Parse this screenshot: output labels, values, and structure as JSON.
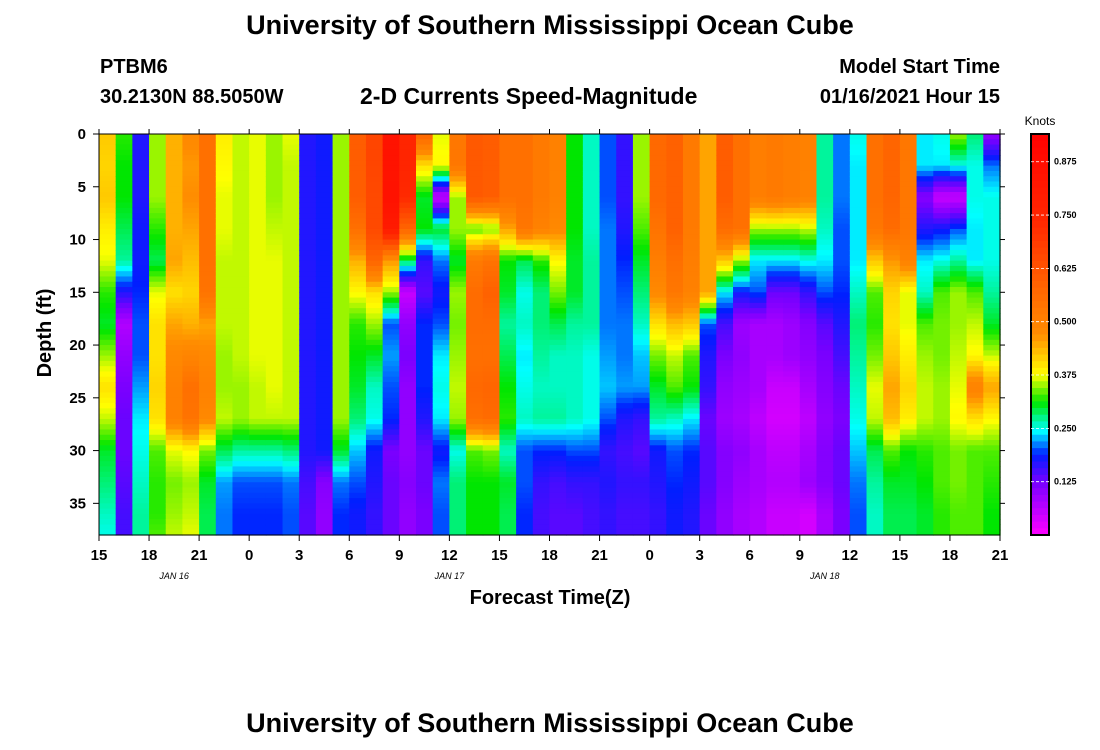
{
  "header": {
    "title": "University of Southern Mississippi Ocean Cube",
    "station_id": "PTBM6",
    "station_coords": "30.2130N 88.5050W",
    "plot_title": "2-D Currents Speed-Magnitude",
    "start_label": "Model Start Time",
    "start_value": "01/16/2021 Hour 15"
  },
  "footer": {
    "title": "University of Southern Mississippi Ocean Cube"
  },
  "chart_data": {
    "type": "heatmap",
    "title": "2-D Currents Speed-Magnitude",
    "xlabel": "Forecast Time(Z)",
    "ylabel": "Depth (ft)",
    "x_hours": [
      0,
      3,
      6,
      9,
      12,
      15,
      18,
      21,
      24,
      27,
      30,
      33,
      36,
      39,
      42,
      45,
      48,
      51,
      54
    ],
    "xtick_labels": [
      "15",
      "18",
      "21",
      "0",
      "3",
      "6",
      "9",
      "12",
      "15",
      "18",
      "21",
      "0",
      "3",
      "6",
      "9",
      "12",
      "15",
      "18",
      "21"
    ],
    "date_labels": [
      {
        "label": "JAN 16",
        "hour": 4.5
      },
      {
        "label": "JAN 17",
        "hour": 21
      },
      {
        "label": "JAN 18",
        "hour": 43.5
      }
    ],
    "ytick_values": [
      0,
      5,
      10,
      15,
      20,
      25,
      30,
      35
    ],
    "xlim": [
      0,
      54
    ],
    "ylim": [
      0,
      38
    ],
    "colorbar": {
      "label": "Knots",
      "range": [
        0,
        0.94
      ],
      "tick_values": [
        0.875,
        0.75,
        0.625,
        0.5,
        0.375,
        0.25,
        0.125
      ],
      "tick_labels": [
        "0.875",
        "0.750",
        "0.625",
        "0.500",
        "0.375",
        "0.250",
        "0.125"
      ]
    },
    "hour_step": 1,
    "depth_values": [
      0,
      3,
      6,
      9,
      12,
      15,
      18,
      21,
      24,
      27,
      30,
      33,
      36,
      38
    ],
    "speed_grid_knots": [
      [
        0.42,
        0.32,
        0.17,
        0.35,
        0.44,
        0.48,
        0.55,
        0.39,
        0.36,
        0.37,
        0.35,
        0.37,
        0.17,
        0.18,
        0.35,
        0.6,
        0.66,
        0.84,
        0.75,
        0.58,
        0.37,
        0.53,
        0.61,
        0.6,
        0.55,
        0.55,
        0.52,
        0.5,
        0.31,
        0.26,
        0.2,
        0.16,
        0.35,
        0.57,
        0.59,
        0.52,
        0.45,
        0.6,
        0.55,
        0.51,
        0.52,
        0.51,
        0.5,
        0.27,
        0.21,
        0.25,
        0.55,
        0.58,
        0.53,
        0.24,
        0.25,
        0.35,
        0.28,
        0.1,
        0.12
      ],
      [
        0.41,
        0.31,
        0.17,
        0.35,
        0.44,
        0.46,
        0.55,
        0.38,
        0.36,
        0.37,
        0.35,
        0.36,
        0.17,
        0.18,
        0.35,
        0.6,
        0.66,
        0.84,
        0.75,
        0.4,
        0.38,
        0.53,
        0.61,
        0.6,
        0.55,
        0.55,
        0.52,
        0.5,
        0.31,
        0.26,
        0.2,
        0.16,
        0.35,
        0.57,
        0.59,
        0.52,
        0.45,
        0.6,
        0.55,
        0.51,
        0.52,
        0.51,
        0.5,
        0.27,
        0.21,
        0.24,
        0.55,
        0.58,
        0.53,
        0.24,
        0.24,
        0.25,
        0.25,
        0.21,
        0.21
      ],
      [
        0.42,
        0.31,
        0.17,
        0.35,
        0.44,
        0.47,
        0.55,
        0.37,
        0.36,
        0.37,
        0.35,
        0.36,
        0.17,
        0.18,
        0.35,
        0.6,
        0.65,
        0.85,
        0.73,
        0.3,
        0.05,
        0.35,
        0.61,
        0.6,
        0.55,
        0.55,
        0.52,
        0.5,
        0.31,
        0.26,
        0.2,
        0.16,
        0.35,
        0.57,
        0.59,
        0.52,
        0.45,
        0.6,
        0.55,
        0.51,
        0.52,
        0.51,
        0.5,
        0.27,
        0.21,
        0.24,
        0.55,
        0.58,
        0.53,
        0.11,
        0.05,
        0.05,
        0.25,
        0.25,
        0.26
      ],
      [
        0.39,
        0.29,
        0.18,
        0.32,
        0.44,
        0.45,
        0.55,
        0.37,
        0.36,
        0.37,
        0.36,
        0.36,
        0.17,
        0.18,
        0.35,
        0.55,
        0.65,
        0.8,
        0.58,
        0.31,
        0.3,
        0.35,
        0.33,
        0.34,
        0.45,
        0.53,
        0.5,
        0.48,
        0.31,
        0.26,
        0.21,
        0.17,
        0.33,
        0.54,
        0.59,
        0.52,
        0.45,
        0.56,
        0.55,
        0.35,
        0.35,
        0.35,
        0.36,
        0.26,
        0.2,
        0.24,
        0.53,
        0.56,
        0.53,
        0.17,
        0.18,
        0.2,
        0.24,
        0.25,
        0.28
      ],
      [
        0.37,
        0.27,
        0.18,
        0.29,
        0.45,
        0.43,
        0.55,
        0.36,
        0.36,
        0.37,
        0.37,
        0.36,
        0.17,
        0.18,
        0.35,
        0.44,
        0.58,
        0.46,
        0.29,
        0.16,
        0.21,
        0.3,
        0.52,
        0.54,
        0.31,
        0.29,
        0.32,
        0.38,
        0.3,
        0.27,
        0.21,
        0.19,
        0.3,
        0.51,
        0.55,
        0.51,
        0.45,
        0.42,
        0.35,
        0.24,
        0.24,
        0.24,
        0.25,
        0.24,
        0.2,
        0.24,
        0.42,
        0.46,
        0.5,
        0.24,
        0.25,
        0.27,
        0.24,
        0.25,
        0.29
      ],
      [
        0.32,
        0.17,
        0.19,
        0.37,
        0.4,
        0.41,
        0.54,
        0.36,
        0.36,
        0.37,
        0.37,
        0.36,
        0.17,
        0.18,
        0.35,
        0.38,
        0.4,
        0.35,
        0.05,
        0.14,
        0.18,
        0.35,
        0.56,
        0.59,
        0.3,
        0.25,
        0.28,
        0.34,
        0.3,
        0.27,
        0.21,
        0.2,
        0.28,
        0.48,
        0.53,
        0.5,
        0.45,
        0.24,
        0.18,
        0.2,
        0.13,
        0.13,
        0.16,
        0.2,
        0.19,
        0.26,
        0.33,
        0.41,
        0.37,
        0.26,
        0.33,
        0.35,
        0.33,
        0.27,
        0.29
      ],
      [
        0.3,
        0.07,
        0.2,
        0.4,
        0.45,
        0.44,
        0.45,
        0.36,
        0.36,
        0.37,
        0.37,
        0.36,
        0.17,
        0.18,
        0.35,
        0.32,
        0.35,
        0.2,
        0.1,
        0.19,
        0.2,
        0.34,
        0.56,
        0.56,
        0.27,
        0.26,
        0.28,
        0.29,
        0.27,
        0.27,
        0.21,
        0.21,
        0.26,
        0.4,
        0.43,
        0.42,
        0.2,
        0.15,
        0.09,
        0.08,
        0.08,
        0.09,
        0.11,
        0.14,
        0.17,
        0.28,
        0.32,
        0.4,
        0.37,
        0.33,
        0.34,
        0.35,
        0.36,
        0.3,
        0.3
      ],
      [
        0.35,
        0.1,
        0.2,
        0.4,
        0.48,
        0.49,
        0.48,
        0.35,
        0.36,
        0.37,
        0.37,
        0.36,
        0.17,
        0.18,
        0.35,
        0.31,
        0.3,
        0.22,
        0.12,
        0.19,
        0.24,
        0.35,
        0.55,
        0.55,
        0.29,
        0.24,
        0.27,
        0.26,
        0.26,
        0.25,
        0.22,
        0.21,
        0.23,
        0.34,
        0.36,
        0.33,
        0.17,
        0.12,
        0.1,
        0.08,
        0.08,
        0.09,
        0.1,
        0.12,
        0.15,
        0.27,
        0.34,
        0.42,
        0.39,
        0.35,
        0.34,
        0.36,
        0.38,
        0.36,
        0.36
      ],
      [
        0.4,
        0.12,
        0.22,
        0.41,
        0.5,
        0.55,
        0.5,
        0.35,
        0.35,
        0.36,
        0.37,
        0.36,
        0.17,
        0.18,
        0.35,
        0.3,
        0.26,
        0.2,
        0.1,
        0.19,
        0.25,
        0.36,
        0.57,
        0.58,
        0.31,
        0.25,
        0.26,
        0.26,
        0.26,
        0.25,
        0.23,
        0.22,
        0.22,
        0.3,
        0.33,
        0.31,
        0.16,
        0.1,
        0.09,
        0.08,
        0.05,
        0.05,
        0.08,
        0.11,
        0.13,
        0.26,
        0.37,
        0.45,
        0.41,
        0.36,
        0.35,
        0.37,
        0.5,
        0.45,
        0.37
      ],
      [
        0.36,
        0.13,
        0.24,
        0.4,
        0.5,
        0.54,
        0.48,
        0.36,
        0.35,
        0.36,
        0.36,
        0.36,
        0.17,
        0.18,
        0.35,
        0.28,
        0.25,
        0.19,
        0.1,
        0.17,
        0.24,
        0.35,
        0.55,
        0.56,
        0.32,
        0.26,
        0.27,
        0.27,
        0.26,
        0.25,
        0.2,
        0.17,
        0.16,
        0.27,
        0.26,
        0.24,
        0.13,
        0.09,
        0.08,
        0.06,
        0.04,
        0.04,
        0.06,
        0.1,
        0.12,
        0.25,
        0.36,
        0.43,
        0.39,
        0.36,
        0.35,
        0.38,
        0.4,
        0.38,
        0.36
      ],
      [
        0.3,
        0.13,
        0.25,
        0.33,
        0.37,
        0.38,
        0.34,
        0.29,
        0.27,
        0.27,
        0.27,
        0.28,
        0.17,
        0.18,
        0.3,
        0.23,
        0.18,
        0.12,
        0.1,
        0.13,
        0.18,
        0.25,
        0.33,
        0.34,
        0.26,
        0.2,
        0.19,
        0.19,
        0.2,
        0.2,
        0.16,
        0.15,
        0.14,
        0.18,
        0.2,
        0.19,
        0.14,
        0.11,
        0.1,
        0.08,
        0.06,
        0.06,
        0.08,
        0.11,
        0.13,
        0.23,
        0.29,
        0.33,
        0.31,
        0.32,
        0.33,
        0.34,
        0.33,
        0.33,
        0.34
      ],
      [
        0.28,
        0.14,
        0.26,
        0.32,
        0.34,
        0.35,
        0.3,
        0.22,
        0.2,
        0.2,
        0.2,
        0.21,
        0.15,
        0.11,
        0.21,
        0.2,
        0.17,
        0.13,
        0.11,
        0.13,
        0.21,
        0.28,
        0.31,
        0.31,
        0.3,
        0.2,
        0.16,
        0.15,
        0.16,
        0.16,
        0.17,
        0.16,
        0.16,
        0.17,
        0.19,
        0.18,
        0.14,
        0.11,
        0.09,
        0.08,
        0.07,
        0.07,
        0.09,
        0.11,
        0.13,
        0.21,
        0.27,
        0.3,
        0.3,
        0.31,
        0.33,
        0.34,
        0.33,
        0.32,
        0.33
      ],
      [
        0.26,
        0.15,
        0.27,
        0.32,
        0.35,
        0.36,
        0.29,
        0.21,
        0.19,
        0.19,
        0.19,
        0.2,
        0.14,
        0.1,
        0.19,
        0.18,
        0.16,
        0.13,
        0.1,
        0.12,
        0.2,
        0.28,
        0.31,
        0.31,
        0.29,
        0.19,
        0.15,
        0.14,
        0.14,
        0.15,
        0.16,
        0.15,
        0.15,
        0.16,
        0.18,
        0.17,
        0.13,
        0.1,
        0.08,
        0.07,
        0.05,
        0.05,
        0.04,
        0.08,
        0.12,
        0.2,
        0.26,
        0.29,
        0.29,
        0.3,
        0.32,
        0.33,
        0.33,
        0.31,
        0.32
      ],
      [
        0.25,
        0.15,
        0.27,
        0.33,
        0.36,
        0.37,
        0.29,
        0.21,
        0.19,
        0.19,
        0.19,
        0.2,
        0.14,
        0.1,
        0.19,
        0.18,
        0.16,
        0.13,
        0.1,
        0.12,
        0.2,
        0.28,
        0.31,
        0.31,
        0.29,
        0.19,
        0.15,
        0.14,
        0.14,
        0.15,
        0.16,
        0.15,
        0.15,
        0.16,
        0.18,
        0.17,
        0.13,
        0.1,
        0.08,
        0.07,
        0.05,
        0.05,
        0.04,
        0.08,
        0.12,
        0.2,
        0.26,
        0.29,
        0.29,
        0.3,
        0.32,
        0.33,
        0.33,
        0.31,
        0.32
      ]
    ]
  }
}
